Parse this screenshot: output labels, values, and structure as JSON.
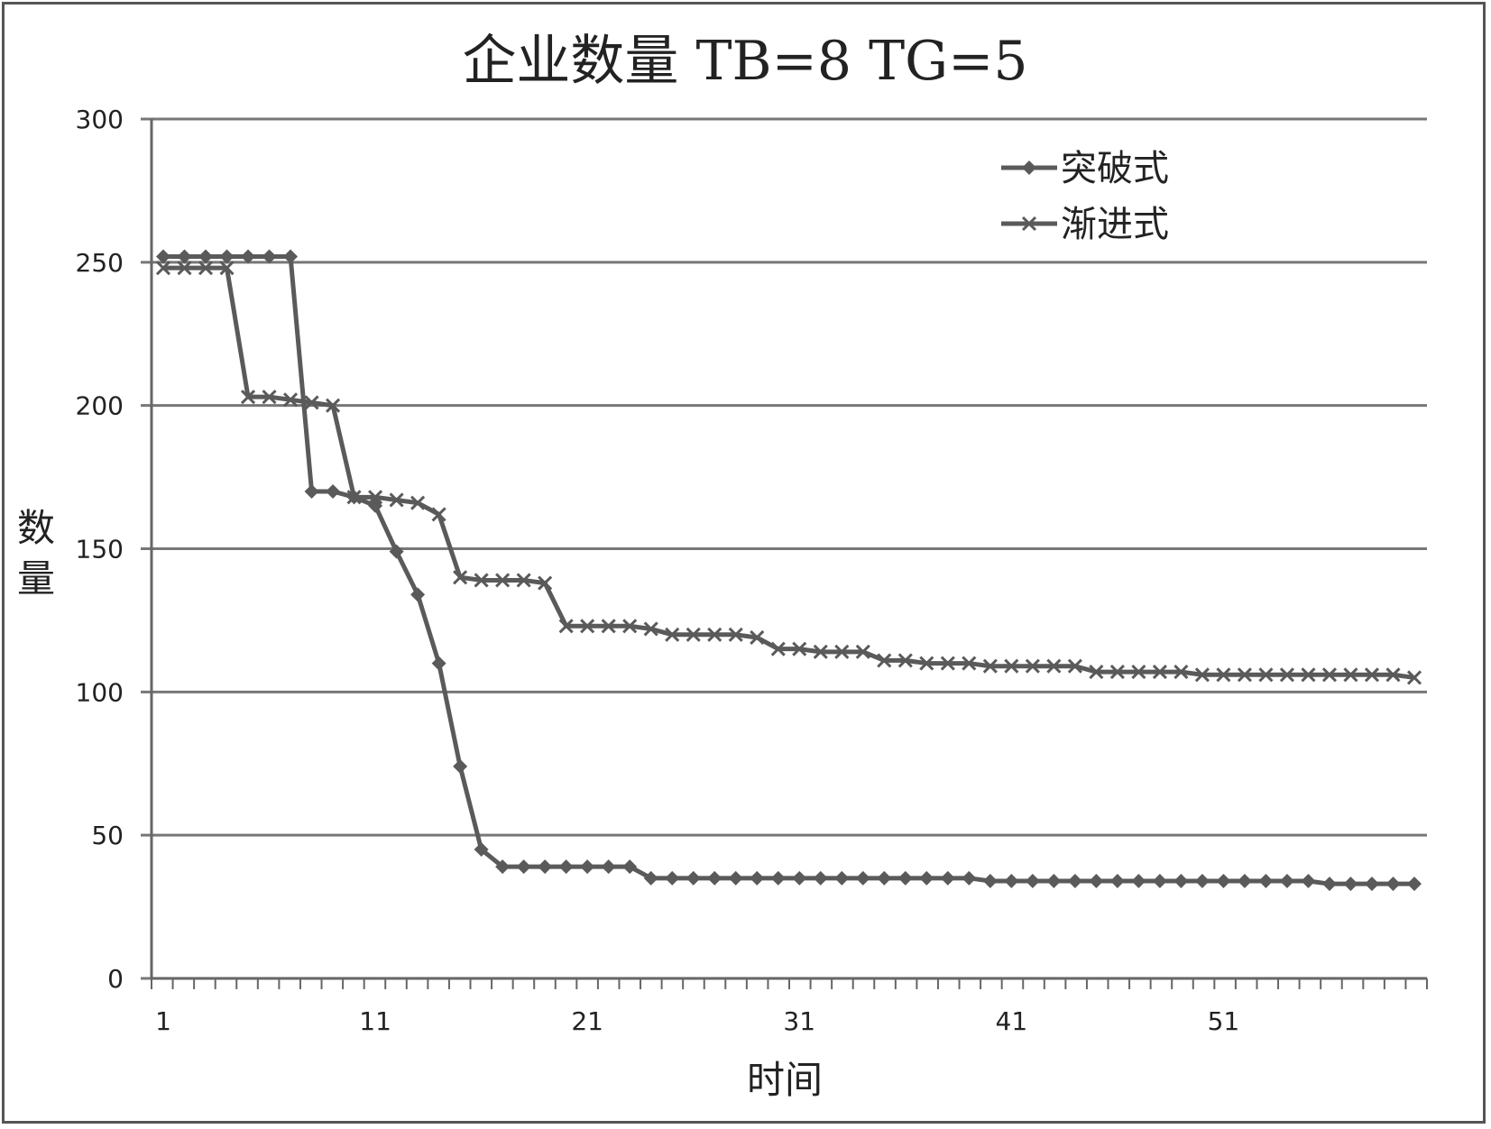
{
  "chart_data": {
    "type": "line",
    "title": "企业数量 TB=8 TG=5",
    "xlabel": "时间",
    "ylabel": "数量",
    "ylim": [
      0,
      300
    ],
    "yticks": [
      "0",
      "50",
      "100",
      "150",
      "200",
      "250",
      "300"
    ],
    "xticks": [
      "1",
      "11",
      "21",
      "31",
      "41",
      "51"
    ],
    "x": [
      1,
      2,
      3,
      4,
      5,
      6,
      7,
      8,
      9,
      10,
      11,
      12,
      13,
      14,
      15,
      16,
      17,
      18,
      19,
      20,
      21,
      22,
      23,
      24,
      25,
      26,
      27,
      28,
      29,
      30,
      31,
      32,
      33,
      34,
      35,
      36,
      37,
      38,
      39,
      40,
      41,
      42,
      43,
      44,
      45,
      46,
      47,
      48,
      49,
      50,
      51,
      52,
      53,
      54,
      55,
      56,
      57,
      58,
      59,
      60
    ],
    "grid": true,
    "legend_position": "top-right",
    "line_color": "#5a5a5a",
    "series": [
      {
        "name": "突破式",
        "marker": "diamond",
        "values": [
          252,
          252,
          252,
          252,
          252,
          252,
          252,
          170,
          170,
          168,
          165,
          149,
          134,
          110,
          74,
          45,
          39,
          39,
          39,
          39,
          39,
          39,
          39,
          35,
          35,
          35,
          35,
          35,
          35,
          35,
          35,
          35,
          35,
          35,
          35,
          35,
          35,
          35,
          35,
          34,
          34,
          34,
          34,
          34,
          34,
          34,
          34,
          34,
          34,
          34,
          34,
          34,
          34,
          34,
          34,
          33,
          33,
          33,
          33,
          33
        ]
      },
      {
        "name": "渐进式",
        "marker": "x",
        "values": [
          248,
          248,
          248,
          248,
          203,
          203,
          202,
          201,
          200,
          168,
          168,
          167,
          166,
          162,
          140,
          139,
          139,
          139,
          138,
          123,
          123,
          123,
          123,
          122,
          120,
          120,
          120,
          120,
          119,
          115,
          115,
          114,
          114,
          114,
          111,
          111,
          110,
          110,
          110,
          109,
          109,
          109,
          109,
          109,
          107,
          107,
          107,
          107,
          107,
          106,
          106,
          106,
          106,
          106,
          106,
          106,
          106,
          106,
          106,
          105
        ]
      }
    ]
  }
}
